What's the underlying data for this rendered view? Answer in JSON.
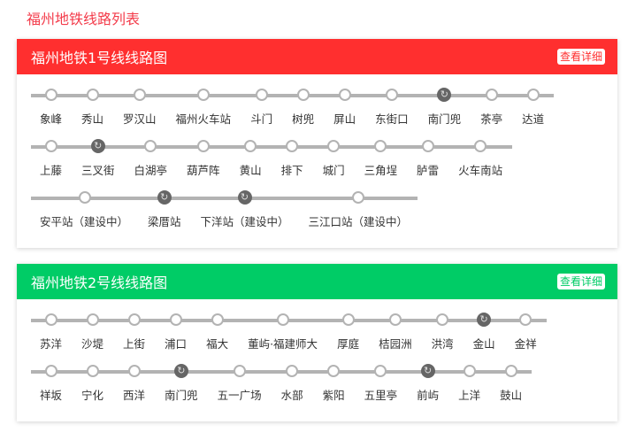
{
  "page_title": "福州地铁线路列表",
  "colors": {
    "line1": "#ff2f2f",
    "line2": "#00cc66",
    "track": "#b3b3b3",
    "interchange": "#666666"
  },
  "lines": [
    {
      "title": "福州地铁1号线线路图",
      "detail": "查看详细",
      "color": "#ff2f2f",
      "rows": [
        [
          {
            "name": "象峰"
          },
          {
            "name": "秀山"
          },
          {
            "name": "罗汉山"
          },
          {
            "name": "福州火车站"
          },
          {
            "name": "斗门"
          },
          {
            "name": "树兜"
          },
          {
            "name": "屏山"
          },
          {
            "name": "东街口"
          },
          {
            "name": "南门兜",
            "interchange": true
          },
          {
            "name": "茶亭"
          },
          {
            "name": "达道"
          }
        ],
        [
          {
            "name": "上藤"
          },
          {
            "name": "三叉街",
            "interchange": true
          },
          {
            "name": "白湖亭"
          },
          {
            "name": "葫芦阵"
          },
          {
            "name": "黄山"
          },
          {
            "name": "排下"
          },
          {
            "name": "城门"
          },
          {
            "name": "三角埕"
          },
          {
            "name": "胪雷"
          },
          {
            "name": "火车南站"
          }
        ],
        [
          {
            "name": "安平站（建设中）"
          },
          {
            "name": "梁厝站",
            "interchange": true
          },
          {
            "name": "下洋站（建设中）",
            "interchange": true
          },
          {
            "name": "三江口站（建设中）"
          }
        ]
      ]
    },
    {
      "title": "福州地铁2号线线路图",
      "detail": "查看详细",
      "color": "#00cc66",
      "rows": [
        [
          {
            "name": "苏洋"
          },
          {
            "name": "沙堤"
          },
          {
            "name": "上街"
          },
          {
            "name": "浦口"
          },
          {
            "name": "福大"
          },
          {
            "name": "董屿·福建师大"
          },
          {
            "name": "厚庭"
          },
          {
            "name": "桔园洲"
          },
          {
            "name": "洪湾"
          },
          {
            "name": "金山",
            "interchange": true
          },
          {
            "name": "金祥"
          }
        ],
        [
          {
            "name": "祥坂"
          },
          {
            "name": "宁化"
          },
          {
            "name": "西洋"
          },
          {
            "name": "南门兜",
            "interchange": true
          },
          {
            "name": "五一广场"
          },
          {
            "name": "水部"
          },
          {
            "name": "紫阳"
          },
          {
            "name": "五里亭"
          },
          {
            "name": "前屿",
            "interchange": true
          },
          {
            "name": "上洋"
          },
          {
            "name": "鼓山"
          }
        ]
      ]
    }
  ]
}
